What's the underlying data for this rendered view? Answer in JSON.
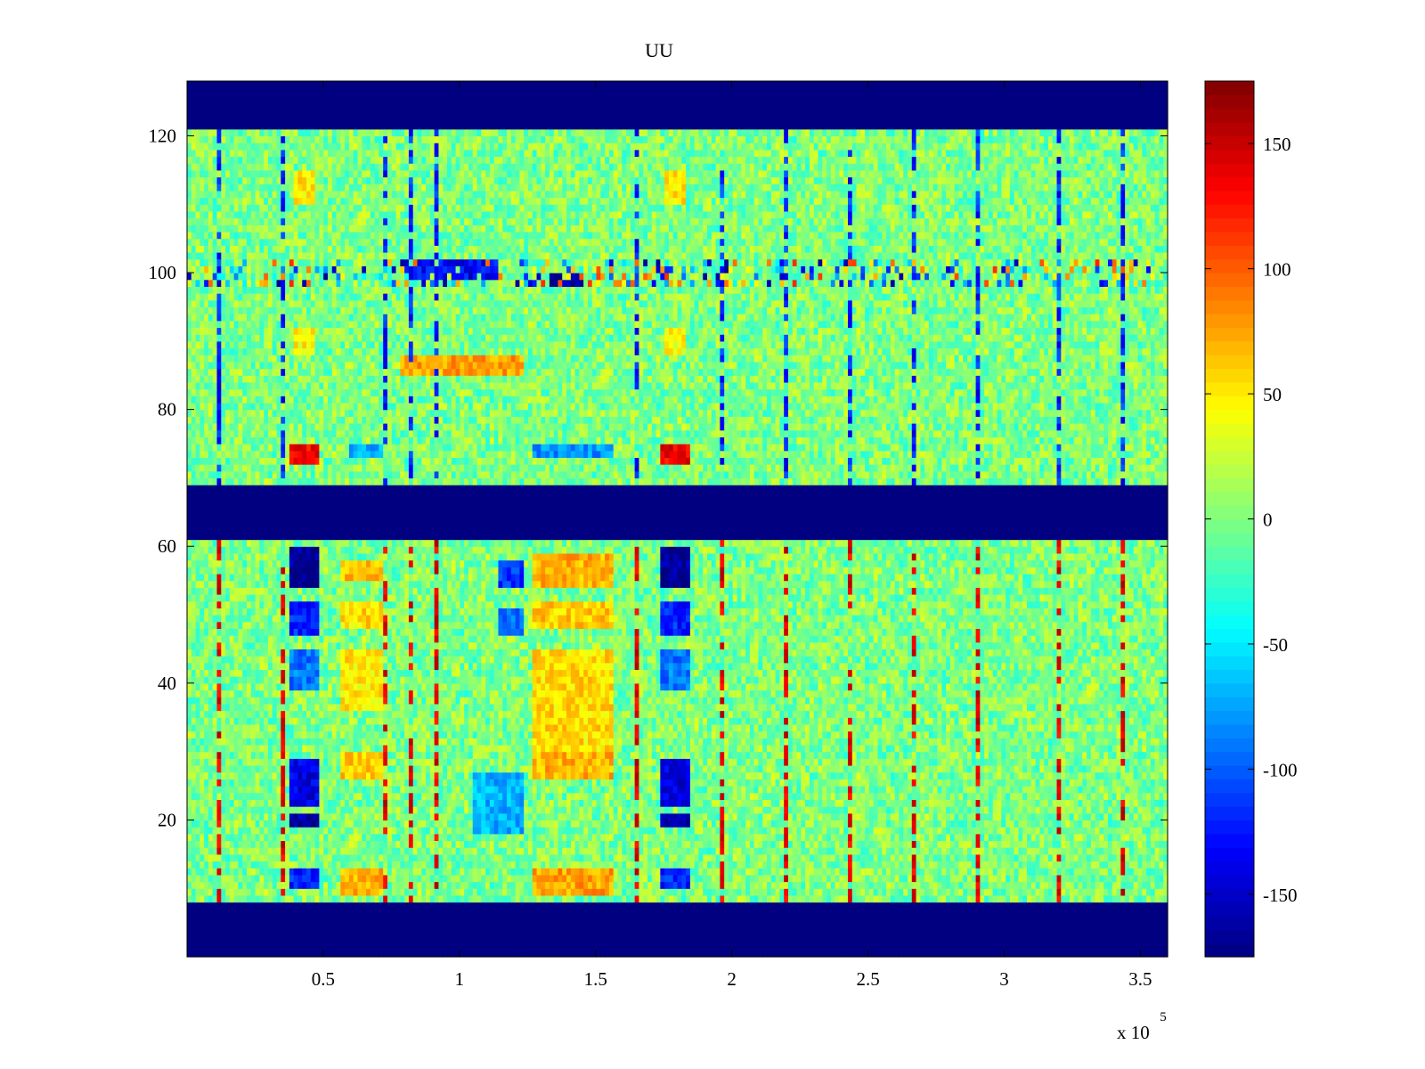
{
  "chart_data": {
    "type": "heatmap",
    "title": "UU",
    "xlabel": "",
    "ylabel": "",
    "x_exponent_label": {
      "base": "x 10",
      "exponent": "5"
    },
    "xlim": [
      0,
      3.6
    ],
    "ylim": [
      0,
      128
    ],
    "x_ticks": [
      0.5,
      1,
      1.5,
      2,
      2.5,
      3,
      3.5
    ],
    "x_tick_labels": [
      "0.5",
      "1",
      "1.5",
      "2",
      "2.5",
      "3",
      "3.5"
    ],
    "y_ticks": [
      20,
      40,
      60,
      80,
      100,
      120
    ],
    "y_tick_labels": [
      "20",
      "40",
      "60",
      "80",
      "100",
      "120"
    ],
    "clim": [
      -175,
      175
    ],
    "colormap": "jet",
    "colorbar": {
      "position": "right",
      "ticks": [
        150,
        100,
        50,
        0,
        -50,
        -100,
        -150
      ],
      "tick_labels": [
        "150",
        "100",
        "50",
        "0",
        "-50",
        "-100",
        "-150"
      ]
    },
    "masked_row_bands": [
      {
        "y_range": [
          0,
          7.5
        ],
        "value": -175
      },
      {
        "y_range": [
          61.5,
          68.5
        ],
        "value": -175
      },
      {
        "y_range": [
          121.5,
          128
        ],
        "value": -175
      }
    ],
    "background_value_range": [
      -30,
      30
    ],
    "vertical_stripe_columns_x": [
      0.11,
      0.36,
      0.73,
      0.82,
      0.92,
      1.65,
      1.96,
      2.2,
      2.44,
      2.67,
      2.91,
      3.2,
      3.44
    ],
    "lower_block_stripe_value": 140,
    "upper_block_stripe_value": -120,
    "features": [
      {
        "x_range": [
          0.38,
          0.48
        ],
        "y_range": [
          54,
          60
        ],
        "value": -165
      },
      {
        "x_range": [
          0.38,
          0.48
        ],
        "y_range": [
          47,
          52
        ],
        "value": -120
      },
      {
        "x_range": [
          0.38,
          0.48
        ],
        "y_range": [
          39,
          45
        ],
        "value": -90
      },
      {
        "x_range": [
          0.38,
          0.48
        ],
        "y_range": [
          22,
          29
        ],
        "value": -140
      },
      {
        "x_range": [
          0.38,
          0.48
        ],
        "y_range": [
          19.5,
          21
        ],
        "value": -165
      },
      {
        "x_range": [
          0.38,
          0.48
        ],
        "y_range": [
          10,
          13
        ],
        "value": -120
      },
      {
        "x_range": [
          1.74,
          1.84
        ],
        "y_range": [
          54,
          60
        ],
        "value": -165
      },
      {
        "x_range": [
          1.74,
          1.84
        ],
        "y_range": [
          47,
          52
        ],
        "value": -120
      },
      {
        "x_range": [
          1.74,
          1.84
        ],
        "y_range": [
          39,
          45
        ],
        "value": -90
      },
      {
        "x_range": [
          1.74,
          1.84
        ],
        "y_range": [
          22,
          29
        ],
        "value": -140
      },
      {
        "x_range": [
          1.74,
          1.84
        ],
        "y_range": [
          19.5,
          21
        ],
        "value": -165
      },
      {
        "x_range": [
          1.74,
          1.84
        ],
        "y_range": [
          10,
          13
        ],
        "value": -120
      },
      {
        "x_range": [
          1.14,
          1.24
        ],
        "y_range": [
          54,
          58
        ],
        "value": -115
      },
      {
        "x_range": [
          1.14,
          1.24
        ],
        "y_range": [
          47,
          51
        ],
        "value": -90
      },
      {
        "x_range": [
          1.05,
          1.24
        ],
        "y_range": [
          18,
          27
        ],
        "value": -70
      },
      {
        "x_range": [
          0.57,
          0.72
        ],
        "y_range": [
          55,
          58
        ],
        "value": 65
      },
      {
        "x_range": [
          0.57,
          0.72
        ],
        "y_range": [
          48,
          52
        ],
        "value": 55
      },
      {
        "x_range": [
          0.57,
          0.72
        ],
        "y_range": [
          36,
          45
        ],
        "value": 50
      },
      {
        "x_range": [
          0.57,
          0.72
        ],
        "y_range": [
          26,
          30
        ],
        "value": 60
      },
      {
        "x_range": [
          0.57,
          0.72
        ],
        "y_range": [
          9,
          13
        ],
        "value": 70
      },
      {
        "x_range": [
          1.27,
          1.56
        ],
        "y_range": [
          54,
          59
        ],
        "value": 70
      },
      {
        "x_range": [
          1.27,
          1.56
        ],
        "y_range": [
          48,
          52
        ],
        "value": 60
      },
      {
        "x_range": [
          1.27,
          1.56
        ],
        "y_range": [
          30,
          45
        ],
        "value": 55
      },
      {
        "x_range": [
          1.27,
          1.56
        ],
        "y_range": [
          26,
          30
        ],
        "value": 70
      },
      {
        "x_range": [
          1.27,
          1.56
        ],
        "y_range": [
          9,
          13
        ],
        "value": 75
      },
      {
        "x_range": [
          0.38,
          0.48
        ],
        "y_range": [
          72.5,
          75
        ],
        "value": 135
      },
      {
        "x_range": [
          1.74,
          1.84
        ],
        "y_range": [
          72.5,
          75
        ],
        "value": 135
      },
      {
        "x_range": [
          0.39,
          0.47
        ],
        "y_range": [
          110,
          115
        ],
        "value": 50
      },
      {
        "x_range": [
          1.75,
          1.83
        ],
        "y_range": [
          110,
          115
        ],
        "value": 50
      },
      {
        "x_range": [
          0.39,
          0.47
        ],
        "y_range": [
          88,
          92
        ],
        "value": 45
      },
      {
        "x_range": [
          1.75,
          1.83
        ],
        "y_range": [
          88,
          92
        ],
        "value": 45
      },
      {
        "x_range": [
          0.78,
          1.24
        ],
        "y_range": [
          85.5,
          88
        ],
        "value": 75
      },
      {
        "x_range": [
          0.6,
          0.72
        ],
        "y_range": [
          73.5,
          75
        ],
        "value": -70
      },
      {
        "x_range": [
          1.27,
          1.56
        ],
        "y_range": [
          73.5,
          75
        ],
        "value": -80
      },
      {
        "x_range": [
          0.8,
          1.14
        ],
        "y_range": [
          99,
          101.5
        ],
        "value": -130
      },
      {
        "x_range": [
          1.33,
          1.46
        ],
        "y_range": [
          98,
          99.5
        ],
        "value": -160
      }
    ],
    "row_100_band": {
      "y_range": [
        98,
        102
      ],
      "value_range": [
        -170,
        120
      ]
    }
  }
}
